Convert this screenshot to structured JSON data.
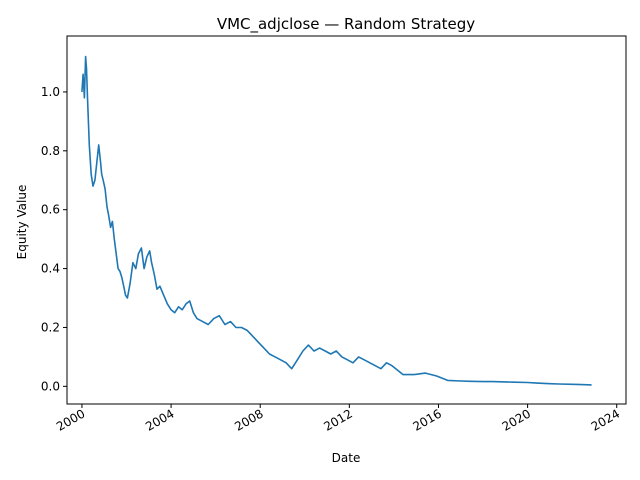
{
  "chart_data": {
    "type": "line",
    "title": "VMC_adjclose — Random Strategy",
    "xlabel": "Date",
    "ylabel": "Equity Value",
    "xlim": [
      "1999-05-01",
      "2024-06-01"
    ],
    "ylim": [
      -0.06,
      1.19
    ],
    "xticks": [
      "2000",
      "2004",
      "2008",
      "2012",
      "2016",
      "2020",
      "2024"
    ],
    "yticks": [
      0.0,
      0.2,
      0.4,
      0.6,
      0.8,
      1.0
    ],
    "grid": false,
    "line_color": "#1f77b4",
    "series": [
      {
        "x": [
          "2000-01-01",
          "2000-01-20",
          "2000-02-10",
          "2000-03-01",
          "2000-03-15",
          "2000-04-01",
          "2000-05-01",
          "2000-06-01",
          "2000-07-01",
          "2000-08-01",
          "2000-09-01",
          "2000-10-01",
          "2000-11-01",
          "2000-11-20",
          "2000-12-15",
          "2001-01-15",
          "2001-02-15",
          "2001-03-15",
          "2001-04-15",
          "2001-05-15",
          "2001-06-15",
          "2001-07-15",
          "2001-08-15",
          "2001-09-15",
          "2001-10-15",
          "2001-11-15",
          "2001-12-15",
          "2002-01-15",
          "2002-03-01",
          "2002-04-15",
          "2002-06-01",
          "2002-07-15",
          "2002-09-01",
          "2002-10-15",
          "2002-12-01",
          "2003-01-15",
          "2003-02-15",
          "2003-04-01",
          "2003-05-15",
          "2003-07-01",
          "2003-09-01",
          "2003-11-01",
          "2004-01-01",
          "2004-03-01",
          "2004-05-01",
          "2004-07-01",
          "2004-09-01",
          "2004-11-01",
          "2005-01-01",
          "2005-03-01",
          "2005-06-01",
          "2005-09-01",
          "2005-12-01",
          "2006-03-01",
          "2006-06-01",
          "2006-09-01",
          "2006-12-01",
          "2007-03-01",
          "2007-06-01",
          "2007-09-01",
          "2007-12-01",
          "2008-03-01",
          "2008-06-01",
          "2008-09-01",
          "2008-12-01",
          "2009-03-01",
          "2009-06-01",
          "2009-09-01",
          "2009-12-01",
          "2010-03-01",
          "2010-06-01",
          "2010-09-01",
          "2010-12-01",
          "2011-03-01",
          "2011-06-01",
          "2011-09-01",
          "2011-12-01",
          "2012-03-01",
          "2012-06-01",
          "2012-09-01",
          "2012-12-01",
          "2013-03-01",
          "2013-06-01",
          "2013-09-01",
          "2013-12-01",
          "2014-06-01",
          "2014-12-01",
          "2015-06-01",
          "2015-12-01",
          "2016-06-01",
          "2017-01-01",
          "2017-06-01",
          "2018-01-01",
          "2018-06-01",
          "2019-01-01",
          "2019-06-01",
          "2020-01-01",
          "2020-06-01",
          "2021-01-01",
          "2021-06-01",
          "2022-01-01",
          "2022-06-01",
          "2022-11-15"
        ],
        "y": [
          1.0,
          1.06,
          0.98,
          1.12,
          1.08,
          0.98,
          0.82,
          0.72,
          0.68,
          0.7,
          0.76,
          0.82,
          0.76,
          0.72,
          0.7,
          0.67,
          0.61,
          0.58,
          0.54,
          0.56,
          0.5,
          0.45,
          0.4,
          0.39,
          0.37,
          0.34,
          0.31,
          0.3,
          0.35,
          0.42,
          0.4,
          0.45,
          0.47,
          0.4,
          0.44,
          0.46,
          0.42,
          0.38,
          0.33,
          0.34,
          0.31,
          0.28,
          0.26,
          0.25,
          0.27,
          0.26,
          0.28,
          0.29,
          0.25,
          0.23,
          0.22,
          0.21,
          0.23,
          0.24,
          0.21,
          0.22,
          0.2,
          0.2,
          0.19,
          0.17,
          0.15,
          0.13,
          0.11,
          0.1,
          0.09,
          0.08,
          0.06,
          0.09,
          0.12,
          0.14,
          0.12,
          0.13,
          0.12,
          0.11,
          0.12,
          0.1,
          0.09,
          0.08,
          0.1,
          0.09,
          0.08,
          0.07,
          0.06,
          0.08,
          0.07,
          0.04,
          0.04,
          0.045,
          0.035,
          0.02,
          0.018,
          0.017,
          0.016,
          0.016,
          0.015,
          0.014,
          0.013,
          0.011,
          0.009,
          0.008,
          0.007,
          0.006,
          0.005
        ]
      }
    ]
  }
}
